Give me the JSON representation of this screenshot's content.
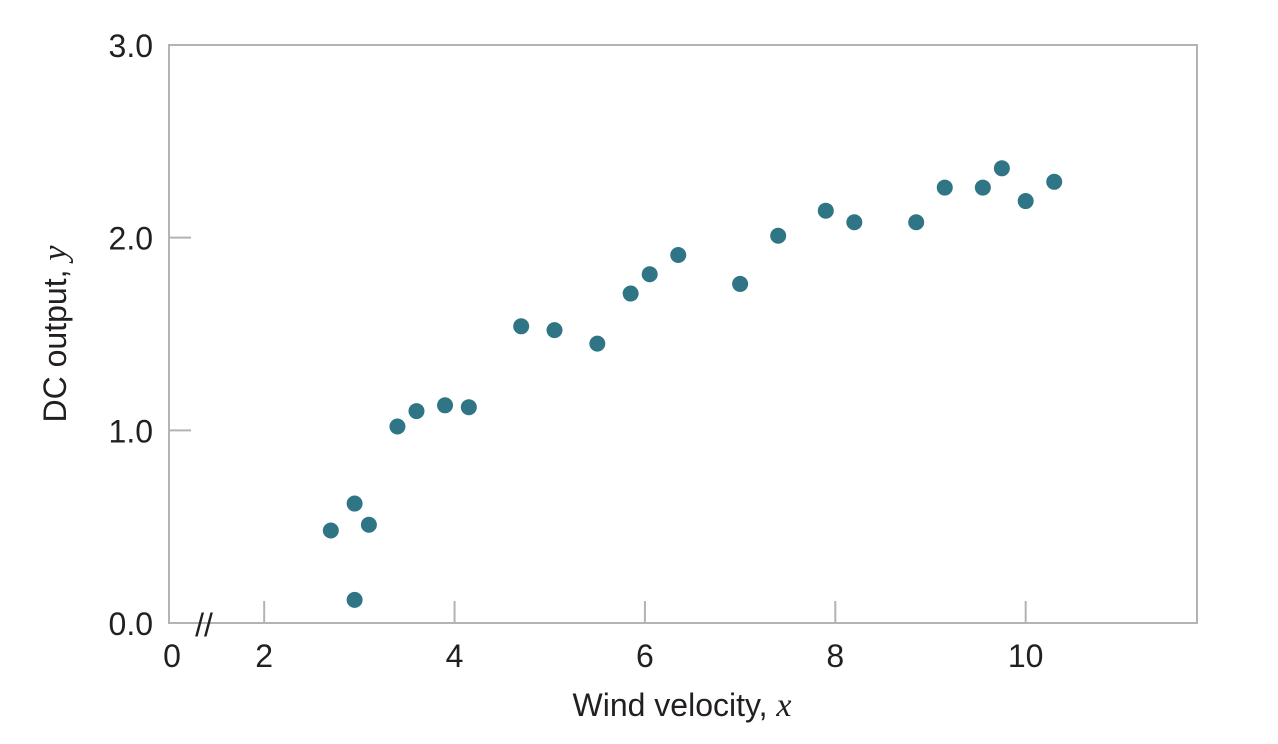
{
  "chart_data": {
    "type": "scatter",
    "xlabel": "Wind velocity,",
    "xlabel_var": "x",
    "ylabel": "DC output,",
    "ylabel_var": "y",
    "xlim": [
      1.0,
      11.8
    ],
    "ylim": [
      0.0,
      3.0
    ],
    "x_ticks": [
      2,
      4,
      6,
      8,
      10
    ],
    "x_tick_labels": [
      "2",
      "4",
      "6",
      "8",
      "10"
    ],
    "x_origin_label": "0",
    "x_axis_break": "//",
    "y_ticks": [
      0.0,
      1.0,
      2.0,
      3.0
    ],
    "y_tick_labels": [
      "0.0",
      "1.0",
      "2.0",
      "3.0"
    ],
    "grid": false,
    "marker_color": "#2f7586",
    "axis_color": "#b3b3b3",
    "series": [
      {
        "points": [
          [
            2.7,
            0.48
          ],
          [
            2.95,
            0.12
          ],
          [
            2.95,
            0.62
          ],
          [
            3.1,
            0.51
          ],
          [
            3.4,
            1.02
          ],
          [
            3.6,
            1.1
          ],
          [
            3.9,
            1.13
          ],
          [
            4.15,
            1.12
          ],
          [
            4.7,
            1.54
          ],
          [
            5.05,
            1.52
          ],
          [
            5.5,
            1.45
          ],
          [
            5.85,
            1.71
          ],
          [
            6.05,
            1.81
          ],
          [
            6.35,
            1.91
          ],
          [
            7.0,
            1.76
          ],
          [
            7.4,
            2.01
          ],
          [
            7.9,
            2.14
          ],
          [
            8.2,
            2.08
          ],
          [
            8.85,
            2.08
          ],
          [
            9.15,
            2.26
          ],
          [
            9.55,
            2.26
          ],
          [
            9.75,
            2.36
          ],
          [
            10.0,
            2.19
          ],
          [
            10.3,
            2.29
          ]
        ]
      }
    ]
  }
}
